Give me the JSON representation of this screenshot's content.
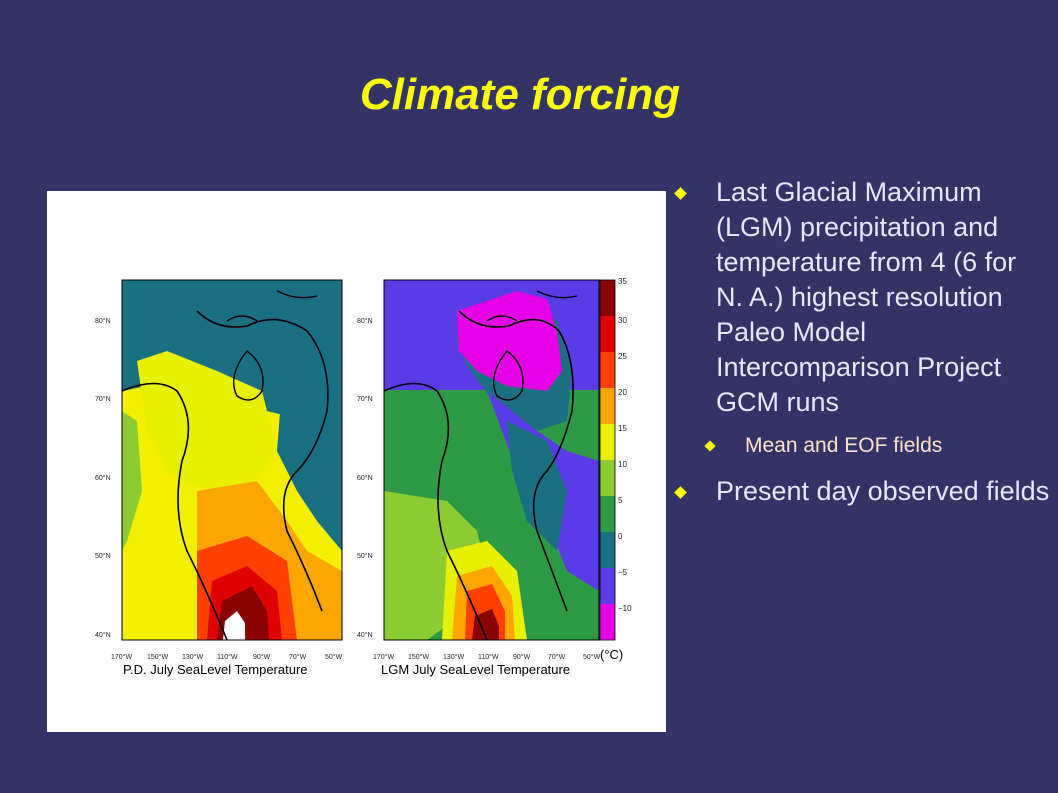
{
  "slide": {
    "title": "Climate forcing"
  },
  "figure": {
    "left_panel_caption": "P.D. July SeaLevel Temperature",
    "right_panel_caption": "LGM July SeaLevel Temperature",
    "lat_labels": [
      "80°N",
      "70°N",
      "60°N",
      "50°N",
      "40°N"
    ],
    "lon_labels": [
      "170°W",
      "150°W",
      "130°W",
      "110°W",
      "90°W",
      "70°W",
      "50°W"
    ],
    "colorbar_ticks": [
      "35",
      "30",
      "25",
      "20",
      "15",
      "10",
      "5",
      "0",
      "−5",
      "−10"
    ],
    "colorbar_unit": "(°C)",
    "colorbar_colors": [
      "#8b0000",
      "#e00000",
      "#ff4000",
      "#ffa500",
      "#e6f000",
      "#8ccc32",
      "#2e9a46",
      "#1a7080",
      "#5a3ce6",
      "#e600e6"
    ]
  },
  "bullets": [
    {
      "text": "Last Glacial Maximum (LGM) precipitation and temperature from 4 (6 for N. A.) highest resolution Paleo Model Intercomparison Project GCM runs",
      "sub": "Mean and EOF fields"
    },
    {
      "text": "Present day observed fields"
    }
  ]
}
